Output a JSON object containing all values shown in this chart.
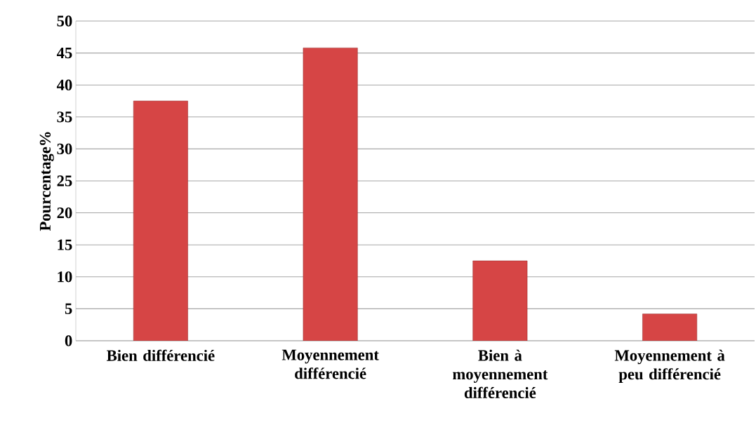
{
  "chart_data": {
    "type": "bar",
    "ylabel": "Pourcentage%",
    "categories": [
      "Bien différencié",
      "Moyennement différencié",
      "Bien à moyennement différencié",
      "Moyennement à peu différencié"
    ],
    "values": [
      37.5,
      45.8,
      12.5,
      4.2
    ],
    "color": "#d64545",
    "ylim": [
      0,
      50
    ],
    "yticks": [
      0,
      5,
      10,
      15,
      20,
      25,
      30,
      35,
      40,
      45,
      50
    ],
    "grid": "y"
  }
}
